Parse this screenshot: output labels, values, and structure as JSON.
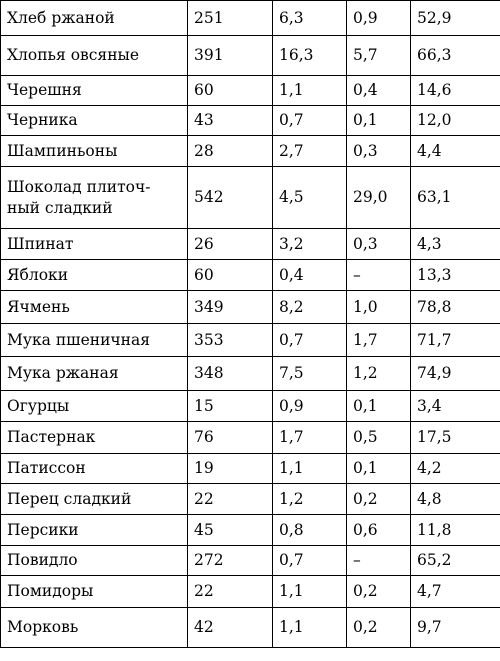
{
  "table": {
    "rows": [
      {
        "name": "Хлеб ржаной",
        "c2": "251",
        "c3": "6,3",
        "c4": "0,9",
        "c5": "52,9"
      },
      {
        "name": "Хлопья овсяные",
        "c2": "391",
        "c3": "16,3",
        "c4": "5,7",
        "c5": "66,3"
      },
      {
        "name": "Черешня",
        "c2": "60",
        "c3": "1,1",
        "c4": "0,4",
        "c5": "14,6"
      },
      {
        "name": "Черника",
        "c2": "43",
        "c3": "0,7",
        "c4": "0,1",
        "c5": "12,0"
      },
      {
        "name": "Шампиньоны",
        "c2": "28",
        "c3": "2,7",
        "c4": "0,3",
        "c5": "4,4"
      },
      {
        "name": "Шоколад плиточ-\nный сладкий",
        "c2": "542",
        "c3": "4,5",
        "c4": "29,0",
        "c5": "63,1"
      },
      {
        "name": "Шпинат",
        "c2": "26",
        "c3": "3,2",
        "c4": "0,3",
        "c5": "4,3"
      },
      {
        "name": "Яблоки",
        "c2": "60",
        "c3": "0,4",
        "c4": "–",
        "c5": "13,3"
      },
      {
        "name": "Ячмень",
        "c2": "349",
        "c3": "8,2",
        "c4": "1,0",
        "c5": "78,8"
      },
      {
        "name": "Мука пшеничная",
        "c2": "353",
        "c3": "0,7",
        "c4": "1,7",
        "c5": "71,7"
      },
      {
        "name": "Мука ржаная",
        "c2": "348",
        "c3": "7,5",
        "c4": "1,2",
        "c5": "74,9"
      },
      {
        "name": "Огурцы",
        "c2": "15",
        "c3": "0,9",
        "c4": "0,1",
        "c5": "3,4"
      },
      {
        "name": "Пастернак",
        "c2": "76",
        "c3": "1,7",
        "c4": "0,5",
        "c5": "17,5"
      },
      {
        "name": "Патиссон",
        "c2": "19",
        "c3": "1,1",
        "c4": "0,1",
        "c5": "4,2"
      },
      {
        "name": "Перец сладкий",
        "c2": "22",
        "c3": "1,2",
        "c4": "0,2",
        "c5": "4,8"
      },
      {
        "name": "Персики",
        "c2": "45",
        "c3": "0,8",
        "c4": "0,6",
        "c5": "11,8"
      },
      {
        "name": "Повидло",
        "c2": "272",
        "c3": "0,7",
        "c4": "–",
        "c5": "65,2"
      },
      {
        "name": "Помидоры",
        "c2": "22",
        "c3": "1,1",
        "c4": "0,2",
        "c5": "4,7"
      },
      {
        "name": "Морковь",
        "c2": "42",
        "c3": "1,1",
        "c4": "0,2",
        "c5": "9,7"
      }
    ]
  }
}
